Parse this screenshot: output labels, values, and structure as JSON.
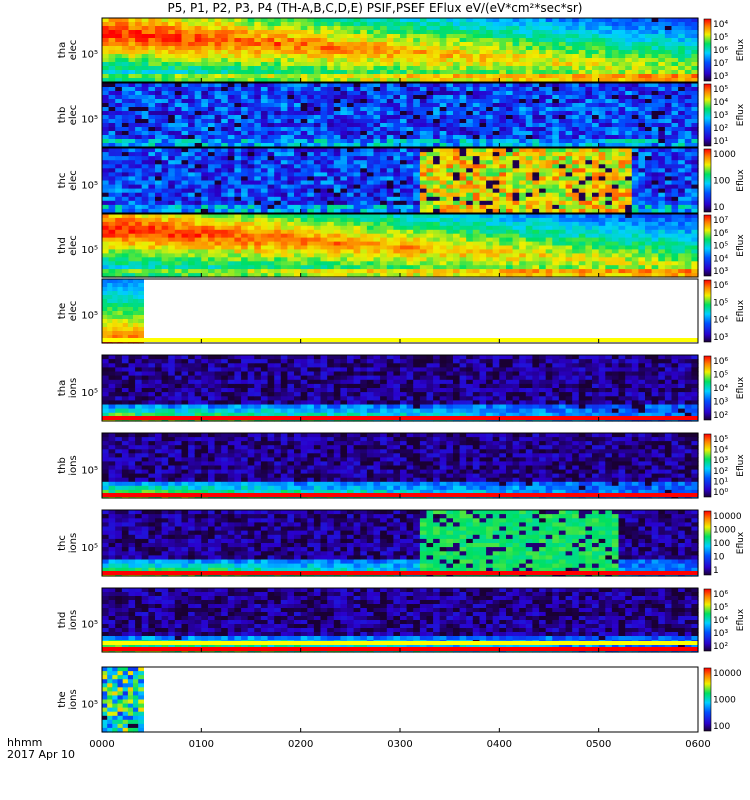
{
  "title": "P5, P1, P2, P3, P4 (TH-A,B,C,D,E) PSIF,PSEF EFlux eV/(eV*cm²*sec*sr)",
  "x_axis": {
    "label": "hhmm",
    "date": "2017 Apr 10",
    "ticks": [
      "0000",
      "0100",
      "0200",
      "0300",
      "0400",
      "0500",
      "0600"
    ]
  },
  "chart_data": [
    {
      "type": "heatmap",
      "id": "tha_elec",
      "ylabel": [
        "tha",
        "elec"
      ],
      "ytick": "10⁵",
      "x_range": [
        "0000",
        "0600"
      ],
      "zlabel": "Eflux",
      "colorbar_ticks": [
        "10⁴",
        "10⁵",
        "10⁶",
        "10⁷",
        "10³"
      ],
      "data_end": "0600",
      "bands": []
    },
    {
      "type": "heatmap",
      "id": "thb_elec",
      "ylabel": [
        "thb",
        "elec"
      ],
      "ytick": "10⁵",
      "x_range": [
        "0000",
        "0600"
      ],
      "zlabel": "Eflux",
      "colorbar_ticks": [
        "10⁵",
        "10⁴",
        "10³",
        "10²",
        "10¹"
      ],
      "data_end": "0600",
      "bands": []
    },
    {
      "type": "heatmap",
      "id": "thc_elec",
      "ylabel": [
        "thc",
        "elec"
      ],
      "ytick": "10⁵",
      "x_range": [
        "0000",
        "0600"
      ],
      "zlabel": "Eflux",
      "colorbar_ticks": [
        "1000",
        "100",
        "10"
      ],
      "data_end": "0600",
      "bands": []
    },
    {
      "type": "heatmap",
      "id": "thd_elec",
      "ylabel": [
        "thd",
        "elec"
      ],
      "ytick": "10⁵",
      "x_range": [
        "0000",
        "0600"
      ],
      "zlabel": "Eflux",
      "colorbar_ticks": [
        "10⁷",
        "10⁶",
        "10⁵",
        "10⁴",
        "10³"
      ],
      "data_end": "0600",
      "bands": []
    },
    {
      "type": "heatmap",
      "id": "the_elec",
      "ylabel": [
        "the",
        "elec"
      ],
      "ytick": "10⁵",
      "x_range": [
        "0000",
        "0600"
      ],
      "zlabel": "Eflux",
      "colorbar_ticks": [
        "10⁶",
        "10⁵",
        "10⁴",
        "10³"
      ],
      "data_end": "0025",
      "bands": [
        "yellow"
      ]
    },
    {
      "type": "heatmap",
      "id": "tha_ions",
      "ylabel": [
        "tha",
        "ions"
      ],
      "ytick": "10⁵",
      "x_range": [
        "0000",
        "0600"
      ],
      "zlabel": "Eflux",
      "colorbar_ticks": [
        "10⁶",
        "10⁵",
        "10⁴",
        "10³",
        "10²"
      ],
      "data_end": "0600",
      "bands": [
        "red"
      ]
    },
    {
      "type": "heatmap",
      "id": "thb_ions",
      "ylabel": [
        "thb",
        "ions"
      ],
      "ytick": "10⁵",
      "x_range": [
        "0000",
        "0600"
      ],
      "zlabel": "Eflux",
      "colorbar_ticks": [
        "10⁵",
        "10⁴",
        "10³",
        "10²",
        "10¹",
        "10⁰"
      ],
      "data_end": "0600",
      "bands": [
        "red"
      ]
    },
    {
      "type": "heatmap",
      "id": "thc_ions",
      "ylabel": [
        "thc",
        "ions"
      ],
      "ytick": "10⁵",
      "x_range": [
        "0000",
        "0600"
      ],
      "zlabel": "Eflux",
      "colorbar_ticks": [
        "10000",
        "1000",
        "100",
        "10",
        "1"
      ],
      "data_end": "0600",
      "bands": [
        "red"
      ]
    },
    {
      "type": "heatmap",
      "id": "thd_ions",
      "ylabel": [
        "thd",
        "ions"
      ],
      "ytick": "10⁵",
      "x_range": [
        "0000",
        "0600"
      ],
      "zlabel": "Eflux",
      "colorbar_ticks": [
        "10⁶",
        "10⁵",
        "10⁴",
        "10³",
        "10²"
      ],
      "data_end": "0600",
      "bands": [
        "red",
        "yellow"
      ]
    },
    {
      "type": "heatmap",
      "id": "the_ions",
      "ylabel": [
        "the",
        "ions"
      ],
      "ytick": "10⁵",
      "x_range": [
        "0000",
        "0600"
      ],
      "zlabel": "",
      "colorbar_ticks": [
        "10000",
        "1000",
        "100"
      ],
      "data_end": "0025",
      "bands": []
    }
  ]
}
